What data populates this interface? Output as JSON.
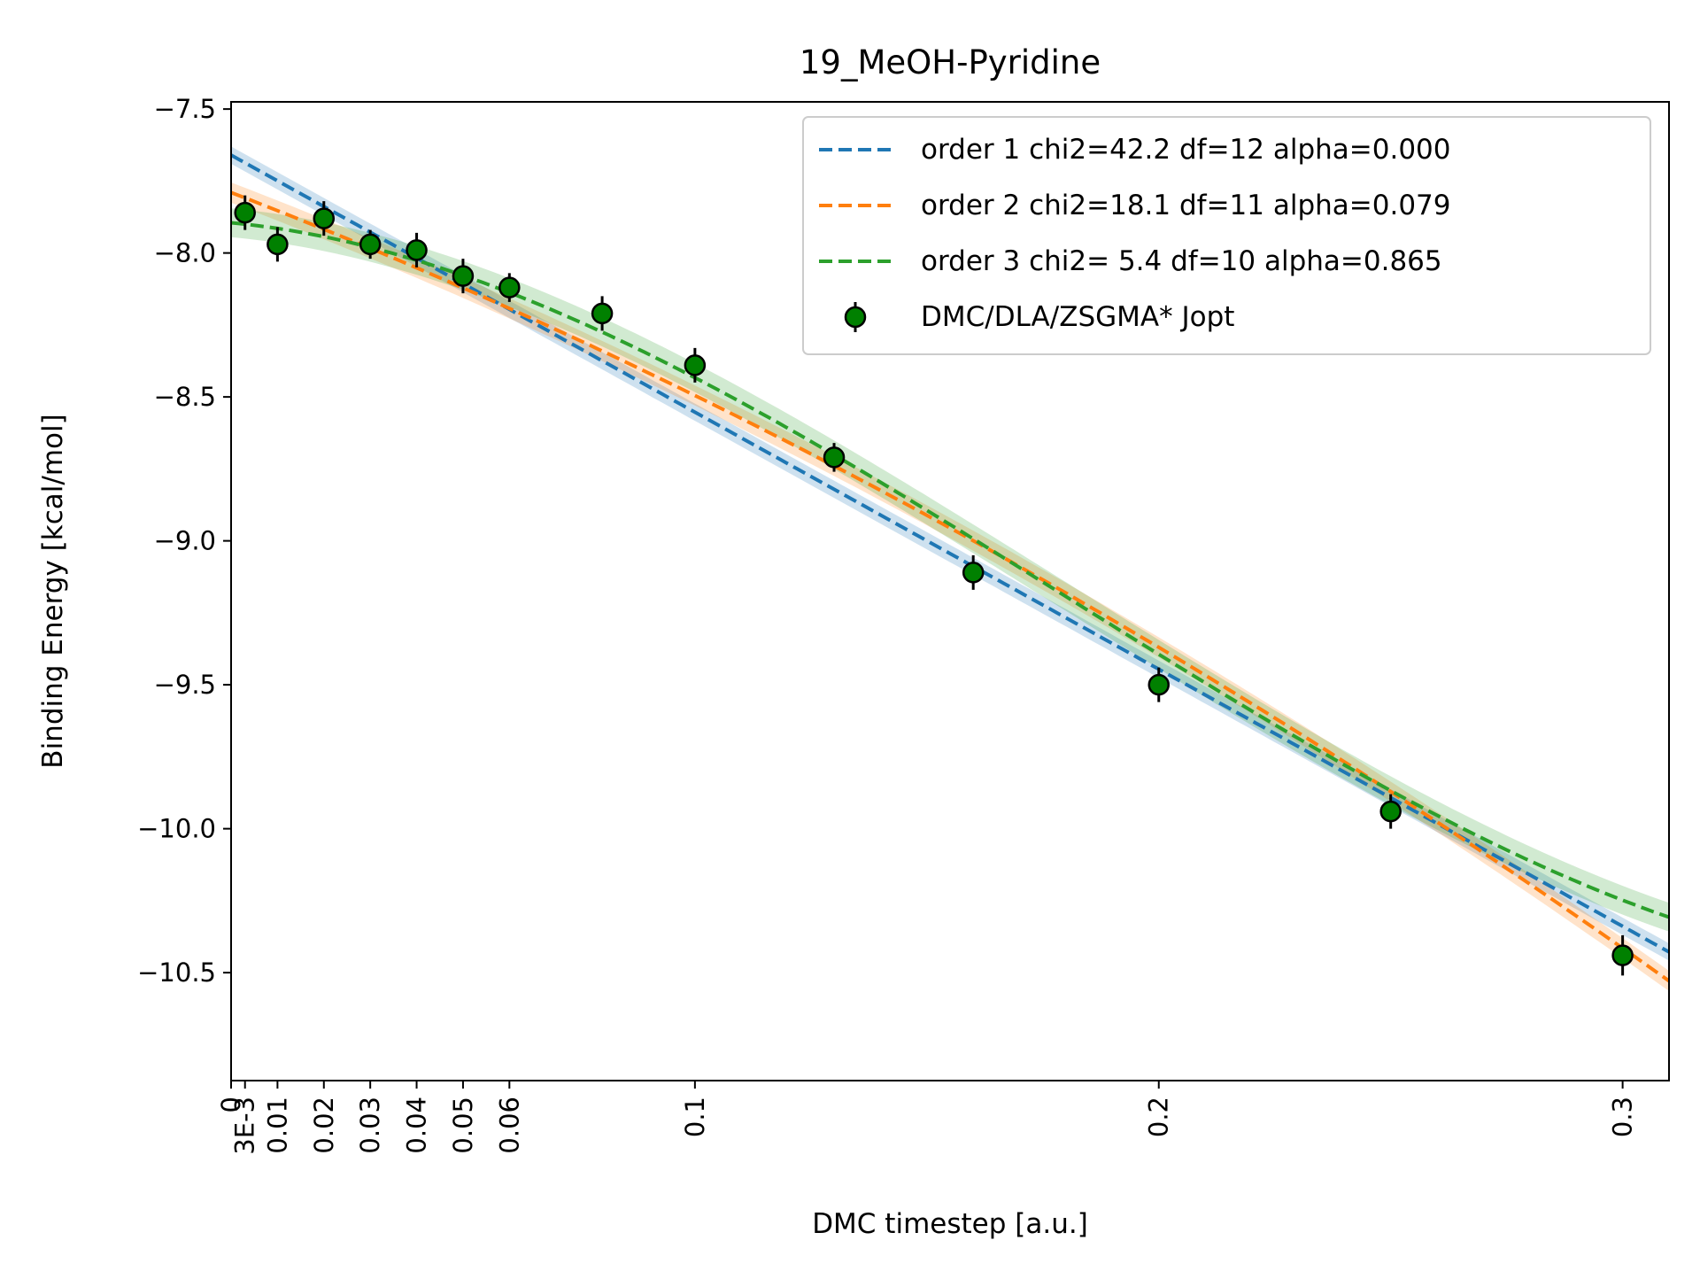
{
  "chart_data": {
    "type": "line",
    "title": "19_MeOH-Pyridine",
    "xlabel": "DMC timestep [a.u.]",
    "ylabel": "Binding Energy [kcal/mol]",
    "xlim": [
      0,
      0.31
    ],
    "ylim": [
      -10.875,
      -7.475
    ],
    "x_ticks": [
      {
        "value": 0,
        "label": "0"
      },
      {
        "value": 0.003,
        "label": "3E-3"
      },
      {
        "value": 0.01,
        "label": "0.01"
      },
      {
        "value": 0.02,
        "label": "0.02"
      },
      {
        "value": 0.03,
        "label": "0.03"
      },
      {
        "value": 0.04,
        "label": "0.04"
      },
      {
        "value": 0.05,
        "label": "0.05"
      },
      {
        "value": 0.06,
        "label": "0.06"
      },
      {
        "value": 0.1,
        "label": "0.1"
      },
      {
        "value": 0.2,
        "label": "0.2"
      },
      {
        "value": 0.3,
        "label": "0.3"
      }
    ],
    "y_ticks": [
      {
        "value": -7.5,
        "label": "−7.5"
      },
      {
        "value": -8.0,
        "label": "−8.0"
      },
      {
        "value": -8.5,
        "label": "−8.5"
      },
      {
        "value": -9.0,
        "label": "−9.0"
      },
      {
        "value": -9.5,
        "label": "−9.5"
      },
      {
        "value": -10.0,
        "label": "−10.0"
      },
      {
        "value": -10.5,
        "label": "−10.5"
      }
    ],
    "grid": false,
    "legend_position": "top-right",
    "fits": [
      {
        "name": "order 1 chi2=42.2 df=12 alpha=0.000",
        "color": "#1f77b4",
        "coeffs": [
          -7.66,
          -8.93
        ],
        "band": 0.03
      },
      {
        "name": "order 2 chi2=18.1 df=11 alpha=0.079",
        "color": "#ff7f0e",
        "coeffs": [
          -7.79,
          -6.2,
          -8.5
        ],
        "band": 0.035
      },
      {
        "name": "order 3 chi2= 5.4 df=10 alpha=0.865",
        "color": "#2ca02c",
        "coeffs": [
          -7.895,
          -1.5,
          -47.65,
          88.34
        ],
        "band": 0.05
      }
    ],
    "points": {
      "name": "DMC/DLA/ZSGMA* Jopt",
      "color": "#008000",
      "data": [
        {
          "x": 0.003,
          "y": -7.86,
          "err": 0.06
        },
        {
          "x": 0.01,
          "y": -7.97,
          "err": 0.06
        },
        {
          "x": 0.02,
          "y": -7.88,
          "err": 0.06
        },
        {
          "x": 0.03,
          "y": -7.97,
          "err": 0.05
        },
        {
          "x": 0.04,
          "y": -7.99,
          "err": 0.06
        },
        {
          "x": 0.05,
          "y": -8.08,
          "err": 0.06
        },
        {
          "x": 0.06,
          "y": -8.12,
          "err": 0.05
        },
        {
          "x": 0.08,
          "y": -8.21,
          "err": 0.06
        },
        {
          "x": 0.1,
          "y": -8.39,
          "err": 0.06
        },
        {
          "x": 0.13,
          "y": -8.71,
          "err": 0.05
        },
        {
          "x": 0.16,
          "y": -9.11,
          "err": 0.06
        },
        {
          "x": 0.2,
          "y": -9.5,
          "err": 0.06
        },
        {
          "x": 0.25,
          "y": -9.94,
          "err": 0.06
        },
        {
          "x": 0.3,
          "y": -10.44,
          "err": 0.07
        }
      ]
    }
  }
}
